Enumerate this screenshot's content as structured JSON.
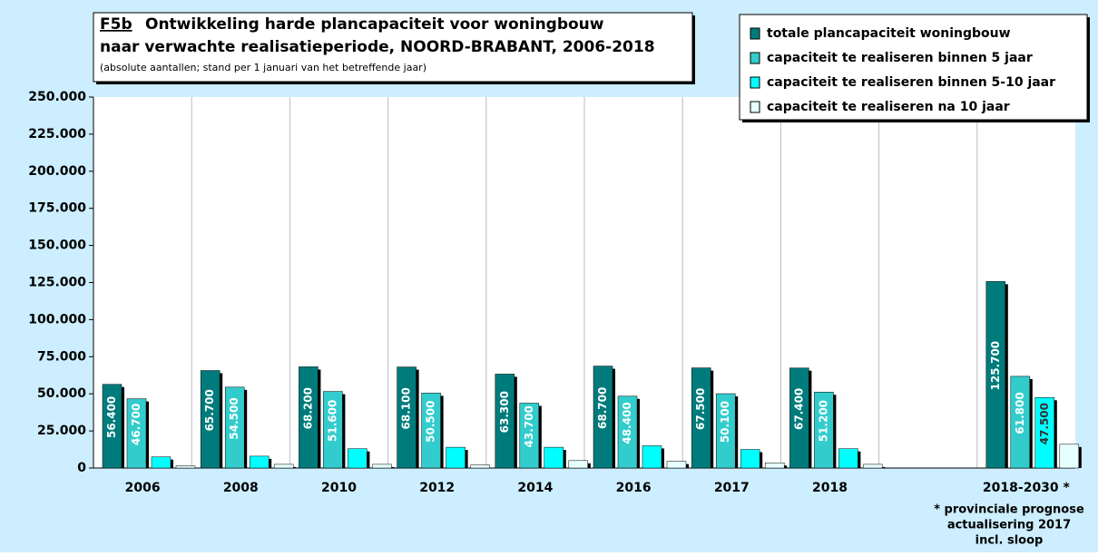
{
  "chart_data": {
    "type": "bar",
    "label": "F5b",
    "title": [
      "Ontwikkeling harde plancapaciteit voor woningbouw",
      "naar verwachte realisatieperiode,  NOORD-BRABANT, 2006-2018"
    ],
    "subtitle": "(absolute aantallen; stand per 1 januari van het betreffende jaar)",
    "footnote": [
      "* provinciale prognose",
      "actualisering 2017",
      "incl. sloop"
    ],
    "categories": [
      "2006",
      "2008",
      "2010",
      "2012",
      "2014",
      "2016",
      "2017",
      "2018",
      null,
      "2018-2030 *"
    ],
    "series": [
      {
        "name": "totale plancapaciteit woningbouw",
        "color": "#007b7b",
        "values": [
          56400,
          65700,
          68200,
          68100,
          63300,
          68700,
          67500,
          67400,
          null,
          125700
        ],
        "value_labels": [
          "56.400",
          "65.700",
          "68.200",
          "68.100",
          "63.300",
          "68.700",
          "67.500",
          "67.400",
          null,
          "125.700"
        ]
      },
      {
        "name": "capaciteit te realiseren binnen 5 jaar",
        "color": "#33cccc",
        "values": [
          46700,
          54500,
          51600,
          50500,
          43700,
          48400,
          50100,
          51200,
          null,
          61800
        ],
        "value_labels": [
          "46.700",
          "54.500",
          "51.600",
          "50.500",
          "43.700",
          "48.400",
          "50.100",
          "51.200",
          null,
          "61.800"
        ]
      },
      {
        "name": "capaciteit te realiseren binnen 5-10 jaar",
        "color": "#00ffff",
        "values": [
          7500,
          8000,
          13000,
          14000,
          14000,
          15000,
          12500,
          13000,
          null,
          47500
        ],
        "value_labels": [
          null,
          null,
          null,
          null,
          null,
          null,
          null,
          null,
          null,
          "47.500"
        ]
      },
      {
        "name": "capaciteit te realiseren na 10 jaar",
        "color": "#e6ffff",
        "values": [
          1500,
          2500,
          2500,
          2000,
          5000,
          4500,
          3500,
          2500,
          null,
          16000
        ]
      }
    ],
    "ylim": [
      0,
      250000
    ],
    "yticks": [
      0,
      {
        "value": 25000,
        "label": "25.000"
      },
      {
        "value": 50000,
        "label": "50.000"
      },
      {
        "value": 75000,
        "label": "75.000"
      },
      {
        "value": 100000,
        "label": "100.000"
      },
      {
        "value": 125000,
        "label": "125.000"
      },
      {
        "value": 150000,
        "label": "150.000"
      },
      {
        "value": 175000,
        "label": "175.000"
      },
      {
        "value": 200000,
        "label": "200.000"
      },
      {
        "value": 225000,
        "label": "225.000"
      },
      {
        "value": 250000,
        "label": "250.000"
      }
    ],
    "grid": true,
    "legend": "top-right",
    "background": "#cceeff"
  }
}
